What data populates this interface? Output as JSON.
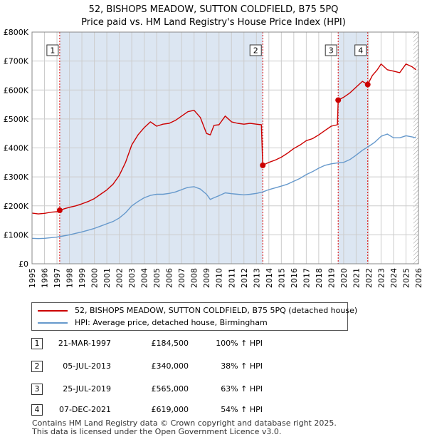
{
  "title": {
    "line1": "52, BISHOPS MEADOW, SUTTON COLDFIELD, B75 5PQ",
    "line2": "Price paid vs. HM Land Registry's House Price Index (HPI)"
  },
  "colors": {
    "price": "#cc0000",
    "hpi": "#6699cc",
    "shade": "#dce6f2",
    "grid": "#cccccc",
    "sale_line": "#dd0000"
  },
  "chart_data": {
    "type": "line",
    "title": "Price paid vs. HM Land Registry's House Price Index (HPI)",
    "xlabel": "",
    "ylabel": "",
    "xlim": [
      1995,
      2026
    ],
    "ylim": [
      0,
      800000
    ],
    "grid": true,
    "y_ticks": [
      0,
      100000,
      200000,
      300000,
      400000,
      500000,
      600000,
      700000,
      800000
    ],
    "y_tick_labels": [
      "£0",
      "£100K",
      "£200K",
      "£300K",
      "£400K",
      "£500K",
      "£600K",
      "£700K",
      "£800K"
    ],
    "x_ticks": [
      1995,
      1996,
      1997,
      1998,
      1999,
      2000,
      2001,
      2002,
      2003,
      2004,
      2005,
      2006,
      2007,
      2008,
      2009,
      2010,
      2011,
      2012,
      2013,
      2014,
      2015,
      2016,
      2017,
      2018,
      2019,
      2020,
      2021,
      2022,
      2023,
      2024,
      2025,
      2026
    ],
    "x_tick_labels": [
      "1995",
      "1996",
      "1997",
      "1998",
      "1999",
      "2000",
      "2001",
      "2002",
      "2003",
      "2004",
      "2005",
      "2006",
      "2007",
      "2008",
      "2009",
      "2010",
      "2011",
      "2012",
      "2013",
      "2014",
      "2015",
      "2016",
      "2017",
      "2018",
      "2019",
      "2020",
      "2021",
      "2022",
      "2023",
      "2024",
      "2025",
      "2026"
    ],
    "shaded_ranges": [
      [
        1997.22,
        2013.51
      ],
      [
        2019.56,
        2021.93
      ]
    ],
    "hatched_from": 2025.6,
    "series": [
      {
        "name": "52, BISHOPS MEADOW, SUTTON COLDFIELD, B75 5PQ (detached house)",
        "x": [
          1995.0,
          1995.5,
          1996.0,
          1996.5,
          1997.0,
          1997.22,
          1997.6,
          1998.0,
          1998.5,
          1999.0,
          1999.5,
          2000.0,
          2000.5,
          2001.0,
          2001.5,
          2002.0,
          2002.5,
          2003.0,
          2003.5,
          2004.0,
          2004.5,
          2005.0,
          2005.5,
          2006.0,
          2006.5,
          2007.0,
          2007.5,
          2008.0,
          2008.5,
          2009.0,
          2009.3,
          2009.6,
          2010.0,
          2010.5,
          2011.0,
          2011.5,
          2012.0,
          2012.5,
          2013.0,
          2013.4,
          2013.51,
          2014.0,
          2014.5,
          2015.0,
          2015.5,
          2016.0,
          2016.5,
          2017.0,
          2017.5,
          2018.0,
          2018.5,
          2019.0,
          2019.5,
          2019.56,
          2020.0,
          2020.5,
          2021.0,
          2021.5,
          2021.93,
          2022.3,
          2022.7,
          2023.0,
          2023.5,
          2024.0,
          2024.5,
          2025.0,
          2025.5,
          2025.8
        ],
        "values": [
          175000,
          172000,
          174000,
          178000,
          180000,
          184500,
          190000,
          195000,
          200000,
          207000,
          215000,
          225000,
          240000,
          255000,
          275000,
          305000,
          350000,
          410000,
          445000,
          470000,
          490000,
          475000,
          482000,
          485000,
          495000,
          510000,
          525000,
          530000,
          505000,
          450000,
          445000,
          478000,
          480000,
          510000,
          490000,
          485000,
          482000,
          485000,
          482000,
          480000,
          340000,
          350000,
          358000,
          368000,
          382000,
          398000,
          410000,
          425000,
          432000,
          445000,
          460000,
          475000,
          480000,
          565000,
          575000,
          590000,
          610000,
          630000,
          619000,
          650000,
          670000,
          690000,
          670000,
          665000,
          660000,
          690000,
          680000,
          670000
        ]
      },
      {
        "name": "HPI: Average price, detached house, Birmingham",
        "x": [
          1995.0,
          1995.5,
          1996.0,
          1996.5,
          1997.0,
          1997.5,
          1998.0,
          1998.5,
          1999.0,
          1999.5,
          2000.0,
          2000.5,
          2001.0,
          2001.5,
          2002.0,
          2002.5,
          2003.0,
          2003.5,
          2004.0,
          2004.5,
          2005.0,
          2005.5,
          2006.0,
          2006.5,
          2007.0,
          2007.5,
          2008.0,
          2008.5,
          2009.0,
          2009.3,
          2009.6,
          2010.0,
          2010.5,
          2011.0,
          2011.5,
          2012.0,
          2012.5,
          2013.0,
          2013.5,
          2014.0,
          2014.5,
          2015.0,
          2015.5,
          2016.0,
          2016.5,
          2017.0,
          2017.5,
          2018.0,
          2018.5,
          2019.0,
          2019.5,
          2020.0,
          2020.5,
          2021.0,
          2021.5,
          2022.0,
          2022.5,
          2023.0,
          2023.5,
          2024.0,
          2024.5,
          2025.0,
          2025.5,
          2025.8
        ],
        "values": [
          88000,
          87000,
          88000,
          90000,
          92000,
          96000,
          100000,
          105000,
          110000,
          116000,
          122000,
          130000,
          138000,
          146000,
          158000,
          176000,
          200000,
          215000,
          228000,
          236000,
          240000,
          240000,
          243000,
          248000,
          256000,
          264000,
          266000,
          258000,
          240000,
          222000,
          228000,
          235000,
          245000,
          242000,
          240000,
          238000,
          240000,
          243000,
          248000,
          256000,
          262000,
          268000,
          275000,
          285000,
          295000,
          308000,
          318000,
          330000,
          340000,
          345000,
          348000,
          350000,
          360000,
          375000,
          392000,
          405000,
          420000,
          440000,
          448000,
          435000,
          435000,
          442000,
          438000,
          435000
        ]
      }
    ],
    "sales": [
      {
        "n": "1",
        "x": 1997.22,
        "value": 184500
      },
      {
        "n": "2",
        "x": 2013.51,
        "value": 340000
      },
      {
        "n": "3",
        "x": 2019.56,
        "value": 565000
      },
      {
        "n": "4",
        "x": 2021.93,
        "value": 619000
      }
    ]
  },
  "legend": {
    "price_label": "52, BISHOPS MEADOW, SUTTON COLDFIELD, B75 5PQ (detached house)",
    "hpi_label": "HPI: Average price, detached house, Birmingham"
  },
  "transactions": [
    {
      "n": "1",
      "date": "21-MAR-1997",
      "price": "£184,500",
      "hpi": "100% ↑ HPI"
    },
    {
      "n": "2",
      "date": "05-JUL-2013",
      "price": "£340,000",
      "hpi": "38% ↑ HPI"
    },
    {
      "n": "3",
      "date": "25-JUL-2019",
      "price": "£565,000",
      "hpi": "63% ↑ HPI"
    },
    {
      "n": "4",
      "date": "07-DEC-2021",
      "price": "£619,000",
      "hpi": "54% ↑ HPI"
    }
  ],
  "footer": {
    "line1": "Contains HM Land Registry data © Crown copyright and database right 2025.",
    "line2": "This data is licensed under the Open Government Licence v3.0."
  }
}
